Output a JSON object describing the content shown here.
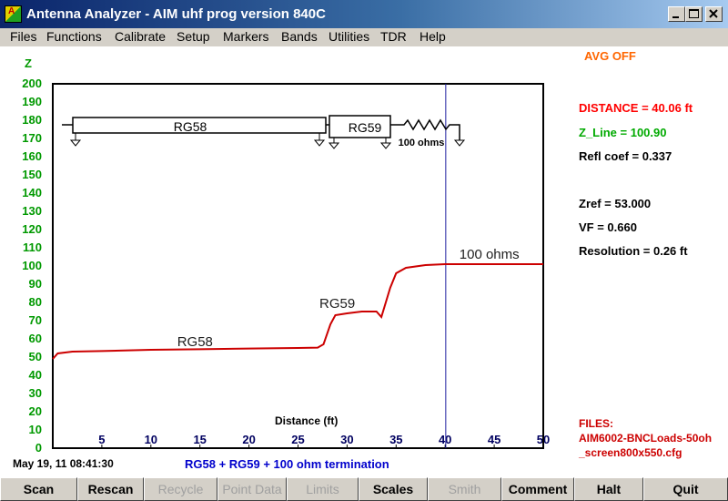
{
  "window": {
    "title": "Antenna Analyzer -   AIM uhf   prog version 840C",
    "controls": [
      "minimize-icon",
      "maximize-icon",
      "close-icon"
    ]
  },
  "menu": [
    "Files",
    "Functions",
    "Calibrate",
    "Setup",
    "Markers",
    "Bands",
    "Utilities",
    "TDR",
    "Help"
  ],
  "status": {
    "avg": "AVG OFF",
    "distance": "DISTANCE = 40.06 ft",
    "z_line": "Z_Line  =  100.90",
    "refl": "Refl coef =  0.337",
    "zref": "Zref =   53.000",
    "vf": "VF =  0.660",
    "resolution": "Resolution =  0.26 ft",
    "files_label": "FILES:",
    "file1": "AIM6002-BNCLoads-50oh",
    "file2": "_screen800x550.cfg"
  },
  "footer": {
    "datetime": "May 19, 11   08:41:30",
    "note": "RG58 + RG59 + 100 ohm termination"
  },
  "buttons": [
    {
      "label": "Scan",
      "enabled": true
    },
    {
      "label": "Rescan",
      "enabled": true
    },
    {
      "label": "Recycle",
      "enabled": false
    },
    {
      "label": "Point Data",
      "enabled": false
    },
    {
      "label": "Limits",
      "enabled": false
    },
    {
      "label": "Scales",
      "enabled": true
    },
    {
      "label": "Smith",
      "enabled": false
    },
    {
      "label": "Comment",
      "enabled": true
    },
    {
      "label": "Halt",
      "enabled": true
    },
    {
      "label": "Quit",
      "enabled": true
    }
  ],
  "colors": {
    "trace": "#cc0000",
    "axis_labels": "#009900",
    "avg": "#ff6600",
    "distance": "#ff0000",
    "z_line": "#00aa00",
    "files": "#cc0000",
    "note": "#0000cc"
  },
  "chart_data": {
    "type": "line",
    "ylabel": "Z",
    "xlabel": "Distance (ft)",
    "xlim": [
      0,
      50
    ],
    "ylim": [
      0,
      200
    ],
    "x_ticks": [
      5,
      10,
      15,
      20,
      25,
      30,
      35,
      40,
      45,
      50
    ],
    "y_ticks": [
      0,
      10,
      20,
      30,
      40,
      50,
      60,
      70,
      80,
      90,
      100,
      110,
      120,
      130,
      140,
      150,
      160,
      170,
      180,
      190,
      200
    ],
    "marker_x": 40.06,
    "series": [
      {
        "points": [
          [
            0,
            49
          ],
          [
            0.5,
            52
          ],
          [
            2,
            53
          ],
          [
            5,
            53.3
          ],
          [
            10,
            54
          ],
          [
            15,
            54.3
          ],
          [
            20,
            54.7
          ],
          [
            25,
            55
          ],
          [
            27,
            55.2
          ],
          [
            27.6,
            57
          ],
          [
            28.3,
            68
          ],
          [
            28.8,
            73
          ],
          [
            30,
            74
          ],
          [
            31.5,
            75
          ],
          [
            33,
            75
          ],
          [
            33.5,
            72
          ],
          [
            34.4,
            88
          ],
          [
            35,
            96
          ],
          [
            36,
            99
          ],
          [
            38,
            100.5
          ],
          [
            40,
            101
          ],
          [
            42,
            101
          ],
          [
            45,
            101
          ],
          [
            50,
            101
          ]
        ]
      }
    ],
    "annotations": [
      {
        "text": "RG58",
        "x": 14.5,
        "y": 56
      },
      {
        "text": "RG59",
        "x": 29,
        "y": 77
      },
      {
        "text": "100 ohms",
        "x": 44.5,
        "y": 104
      }
    ],
    "schematic": {
      "labels": [
        "RG58",
        "RG59",
        "100 ohms"
      ]
    }
  }
}
